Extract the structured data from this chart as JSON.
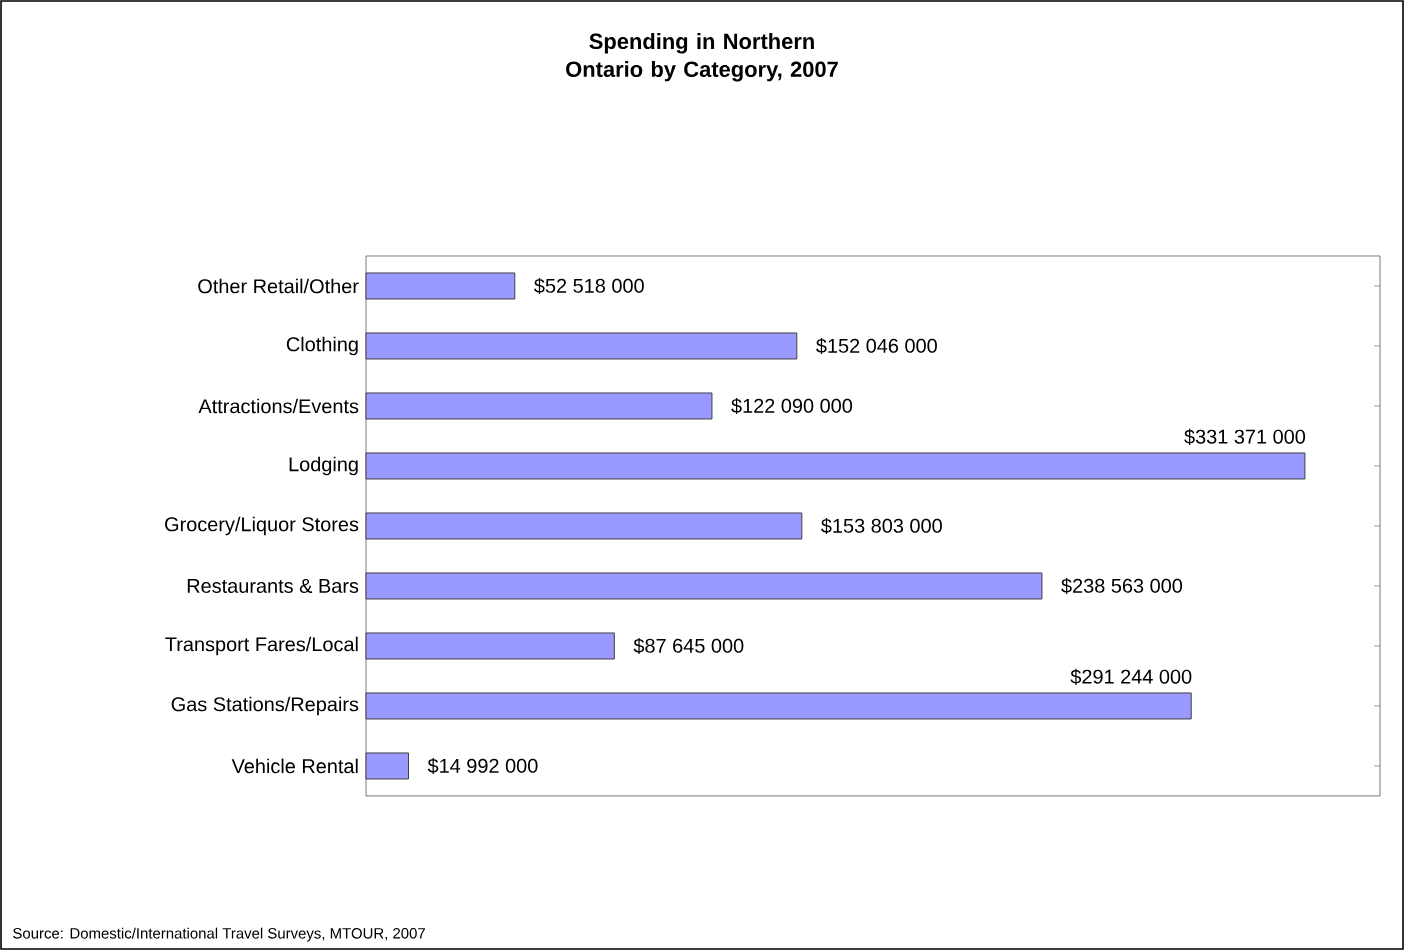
{
  "chart_data": {
    "type": "bar",
    "orientation": "horizontal",
    "title": "Spending in Northern Ontario by Category, 2007",
    "categories": [
      "Other Retail/Other",
      "Clothing",
      "Attractions/Events",
      "Lodging",
      "Grocery/Liquor Stores",
      "Restaurants & Bars",
      "Transport Fares/Local",
      "Gas Stations/Repairs",
      "Vehicle Rental"
    ],
    "values": [
      52518000,
      152046000,
      122090000,
      331371000,
      153803000,
      238563000,
      87645000,
      291244000,
      14992000
    ],
    "value_labels": [
      "$52 518 000",
      "$152 046 000",
      "$122 090 000",
      "$331 371 000",
      "$153 803 000",
      "$238 563 000",
      "$87 645 000",
      "$291 244 000",
      "$14 992 000"
    ],
    "color": "#9999ff",
    "tick_labels": "y",
    "annotations": [
      "Source:  Domestic/International Travel Surveys, MTOUR, 2007"
    ]
  }
}
